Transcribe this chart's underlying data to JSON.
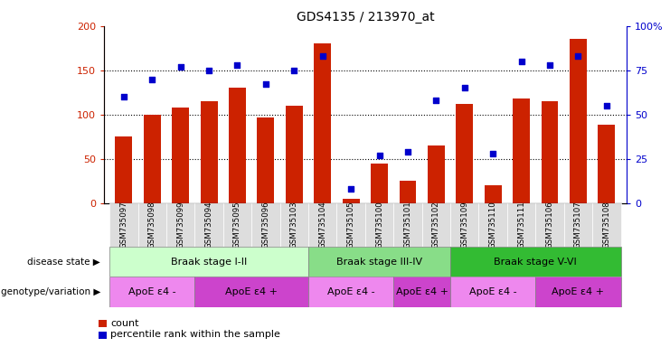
{
  "title": "GDS4135 / 213970_at",
  "samples": [
    "GSM735097",
    "GSM735098",
    "GSM735099",
    "GSM735094",
    "GSM735095",
    "GSM735096",
    "GSM735103",
    "GSM735104",
    "GSM735105",
    "GSM735100",
    "GSM735101",
    "GSM735102",
    "GSM735109",
    "GSM735110",
    "GSM735111",
    "GSM735106",
    "GSM735107",
    "GSM735108"
  ],
  "counts": [
    75,
    100,
    108,
    115,
    130,
    97,
    110,
    180,
    5,
    45,
    25,
    65,
    112,
    20,
    118,
    115,
    185,
    88
  ],
  "percentiles": [
    60,
    70,
    77,
    75,
    78,
    67,
    75,
    83,
    8,
    27,
    29,
    58,
    65,
    28,
    80,
    78,
    83,
    55
  ],
  "bar_color": "#cc2200",
  "dot_color": "#0000cc",
  "ylim_left": [
    0,
    200
  ],
  "ylim_right": [
    0,
    100
  ],
  "yticks_left": [
    0,
    50,
    100,
    150,
    200
  ],
  "yticks_right": [
    0,
    25,
    50,
    75,
    100
  ],
  "ytick_labels_right": [
    "0",
    "25",
    "50",
    "75",
    "100%"
  ],
  "grid_values": [
    50,
    100,
    150
  ],
  "disease_stages": [
    {
      "label": "Braak stage I-II",
      "start": 0,
      "end": 7,
      "color": "#ccffcc"
    },
    {
      "label": "Braak stage III-IV",
      "start": 7,
      "end": 12,
      "color": "#88dd88"
    },
    {
      "label": "Braak stage V-VI",
      "start": 12,
      "end": 18,
      "color": "#33bb33"
    }
  ],
  "genotype_groups": [
    {
      "label": "ApoE ε4 -",
      "start": 0,
      "end": 3,
      "color": "#ee88ee"
    },
    {
      "label": "ApoE ε4 +",
      "start": 3,
      "end": 7,
      "color": "#cc44cc"
    },
    {
      "label": "ApoE ε4 -",
      "start": 7,
      "end": 10,
      "color": "#ee88ee"
    },
    {
      "label": "ApoE ε4 +",
      "start": 10,
      "end": 12,
      "color": "#cc44cc"
    },
    {
      "label": "ApoE ε4 -",
      "start": 12,
      "end": 15,
      "color": "#ee88ee"
    },
    {
      "label": "ApoE ε4 +",
      "start": 15,
      "end": 18,
      "color": "#cc44cc"
    }
  ],
  "legend_count_label": "count",
  "legend_percentile_label": "percentile rank within the sample",
  "disease_state_label": "disease state",
  "genotype_label": "genotype/variation",
  "background_color": "#ffffff",
  "tick_bg_color": "#dddddd",
  "label_text_color": "#555555"
}
